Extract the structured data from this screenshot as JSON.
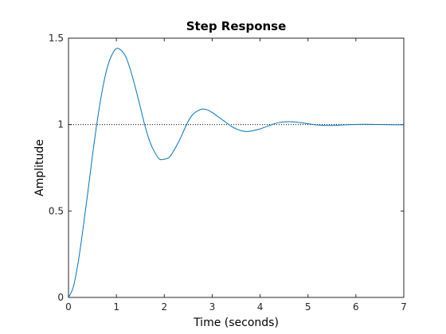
{
  "chart_data": {
    "type": "line",
    "title": "Step Response",
    "xlabel": "Time (seconds)",
    "ylabel": "Amplitude",
    "xlim": [
      0,
      7
    ],
    "ylim": [
      0,
      1.5
    ],
    "xticks": [
      0,
      1,
      2,
      3,
      4,
      5,
      6,
      7
    ],
    "xtick_labels": [
      "0",
      "1",
      "2",
      "3",
      "4",
      "5",
      "6",
      "7"
    ],
    "yticks": [
      0,
      0.5,
      1,
      1.5
    ],
    "ytick_labels": [
      "0",
      "0.5",
      "1",
      "1.5"
    ],
    "grid": false,
    "reference_line": {
      "y": 1,
      "style": "dotted",
      "color": "#000000"
    },
    "series": [
      {
        "color": "#0072BD",
        "x": [
          0,
          0.1,
          0.2,
          0.3,
          0.4,
          0.5,
          0.6,
          0.7,
          0.8,
          0.9,
          1.0,
          1.1,
          1.2,
          1.3,
          1.4,
          1.5,
          1.6,
          1.7,
          1.8,
          1.9,
          2.0,
          2.1,
          2.2,
          2.3,
          2.4,
          2.5,
          2.6,
          2.7,
          2.8,
          2.9,
          3.0,
          3.1,
          3.2,
          3.3,
          3.4,
          3.5,
          3.6,
          3.7,
          3.8,
          3.9,
          4.0,
          4.1,
          4.2,
          4.3,
          4.4,
          4.5,
          4.6,
          4.7,
          4.8,
          4.9,
          5.0,
          5.1,
          5.2,
          5.3,
          5.4,
          5.5,
          5.6,
          5.7,
          5.8,
          5.9,
          6.0,
          6.2,
          6.4,
          6.6,
          6.8,
          7.0
        ],
        "y": [
          0,
          0.06,
          0.2,
          0.39,
          0.6,
          0.82,
          1.02,
          1.19,
          1.32,
          1.4,
          1.44,
          1.43,
          1.39,
          1.31,
          1.21,
          1.1,
          0.99,
          0.9,
          0.84,
          0.8,
          0.8,
          0.81,
          0.85,
          0.9,
          0.96,
          1.02,
          1.06,
          1.08,
          1.09,
          1.085,
          1.07,
          1.05,
          1.03,
          1.01,
          0.99,
          0.975,
          0.965,
          0.96,
          0.962,
          0.968,
          0.975,
          0.985,
          0.995,
          1.005,
          1.012,
          1.016,
          1.017,
          1.016,
          1.013,
          1.009,
          1.005,
          1.001,
          0.998,
          0.996,
          0.995,
          0.995,
          0.996,
          0.998,
          0.999,
          1.0,
          1.001,
          1.002,
          1.001,
          1.0,
          0.999,
          1.0
        ]
      }
    ]
  }
}
